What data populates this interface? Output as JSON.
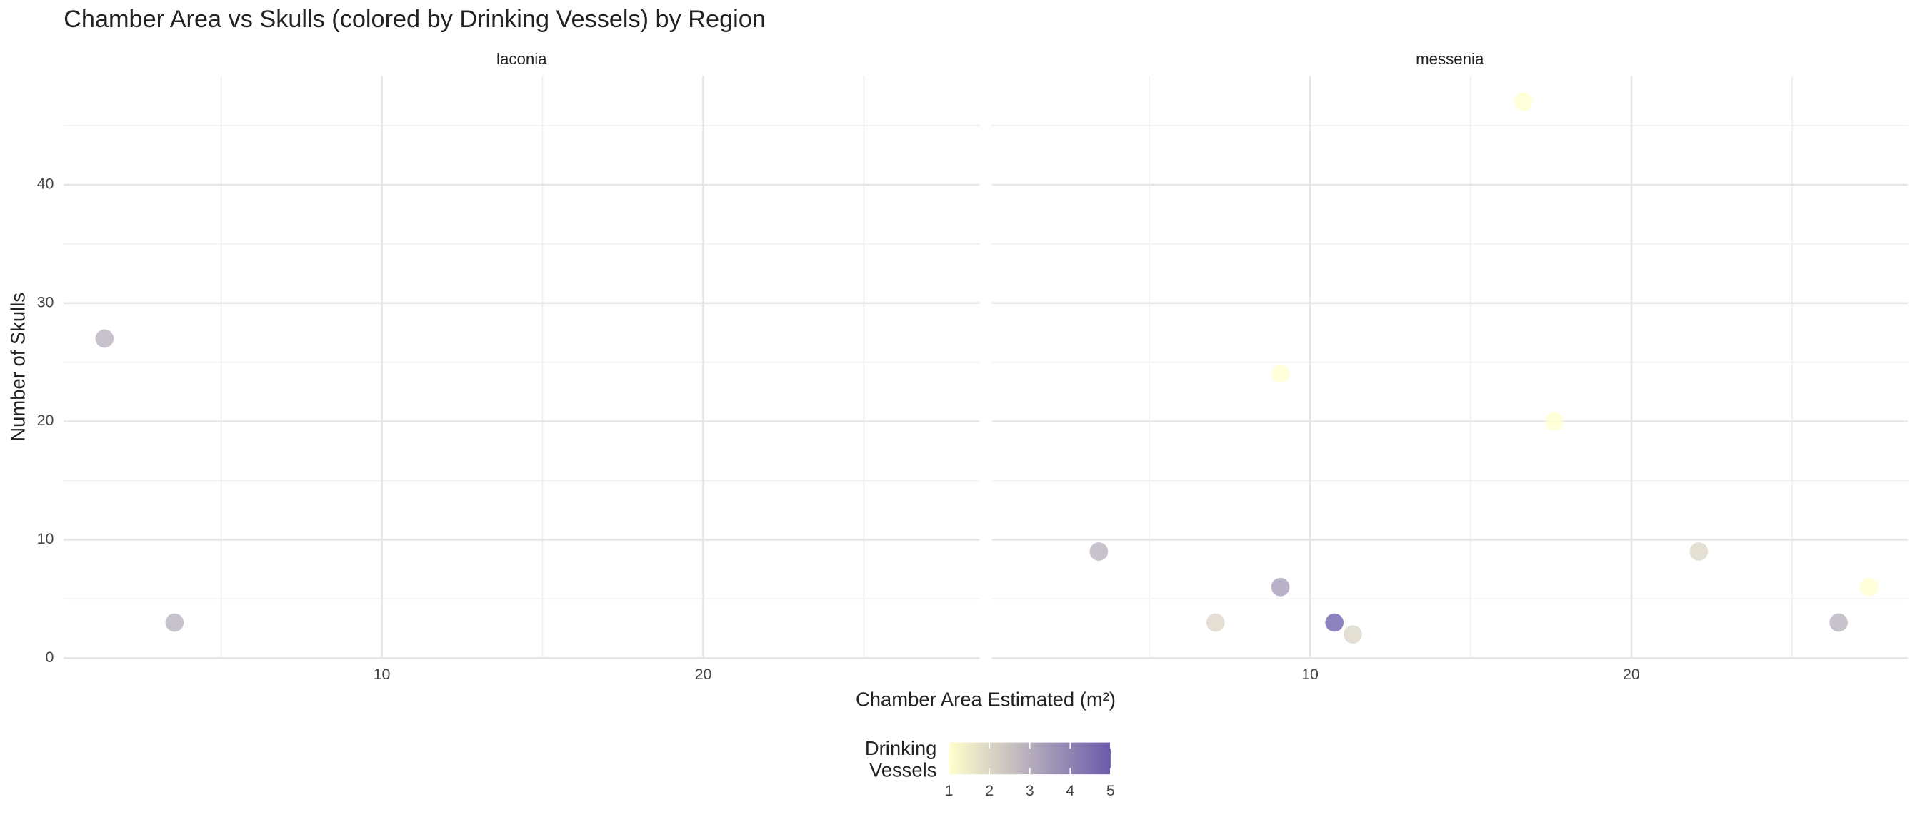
{
  "chart_data": {
    "type": "scatter",
    "title": "Chamber Area vs Skulls (colored by Drinking Vessels) by Region",
    "x_label": "Chamber Area Estimated (m²)",
    "y_label": "Number of Skulls",
    "legend_title": "Drinking Vessels",
    "xlim": [
      0.1,
      28.6
    ],
    "ylim": [
      0,
      49.2
    ],
    "xticks": [
      10,
      20
    ],
    "yticks": [
      0,
      10,
      20,
      30,
      40
    ],
    "minor_xticks": [
      5,
      15,
      25
    ],
    "minor_yticks": [
      5,
      15,
      25,
      35,
      45
    ],
    "color_scale": {
      "low": "#ffffcc",
      "high": "#6a5aaa",
      "lim": [
        1,
        5
      ],
      "ticks": [
        1,
        2,
        3,
        4,
        5
      ]
    },
    "grid": true,
    "facets": [
      {
        "name": "laconia",
        "x": [
          1.37,
          3.55
        ],
        "y": [
          27,
          3
        ],
        "color_values": [
          3,
          3
        ]
      },
      {
        "name": "messenia",
        "x": [
          3.43,
          9.08,
          7.06,
          9.08,
          10.76,
          11.33,
          16.64,
          17.6,
          22.1,
          26.45,
          27.4
        ],
        "y": [
          9,
          24,
          3,
          6,
          3,
          2,
          47,
          20,
          9,
          3,
          6
        ],
        "color_values": [
          3,
          1,
          2,
          3.5,
          5,
          2,
          1,
          1,
          2,
          3,
          1
        ]
      }
    ]
  }
}
